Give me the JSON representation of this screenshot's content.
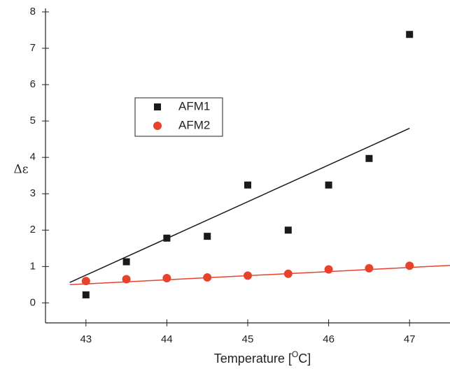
{
  "chart_data": {
    "type": "scatter",
    "xlabel": [
      "Temperature [",
      "O",
      "C]"
    ],
    "ylabel": "Δε",
    "x": [
      43,
      43.5,
      44,
      44.5,
      45,
      45.5,
      46,
      46.5,
      47
    ],
    "series": [
      {
        "name": "AFM1",
        "color": "#1a1a1a",
        "marker": "square",
        "values": [
          0.22,
          1.13,
          1.78,
          1.83,
          3.24,
          2.0,
          3.24,
          3.97,
          7.38
        ]
      },
      {
        "name": "AFM2",
        "color": "#e8412c",
        "marker": "circle",
        "values": [
          0.6,
          0.65,
          0.68,
          0.7,
          0.75,
          0.8,
          0.92,
          0.95,
          1.02
        ]
      }
    ],
    "fit_lines": [
      {
        "color": "#1a1a1a",
        "x": [
          42.8,
          47
        ],
        "values": [
          0.56,
          4.8
        ]
      },
      {
        "color": "#e8412c",
        "x": [
          42.8,
          47.5
        ],
        "values": [
          0.5,
          1.03
        ]
      }
    ],
    "xlim": [
      42.5,
      47.5
    ],
    "ylim": [
      -0.55,
      8
    ],
    "xticks": [
      43,
      44,
      45,
      46,
      47
    ],
    "yticks": [
      0,
      1,
      2,
      3,
      4,
      5,
      6,
      7,
      8
    ]
  }
}
